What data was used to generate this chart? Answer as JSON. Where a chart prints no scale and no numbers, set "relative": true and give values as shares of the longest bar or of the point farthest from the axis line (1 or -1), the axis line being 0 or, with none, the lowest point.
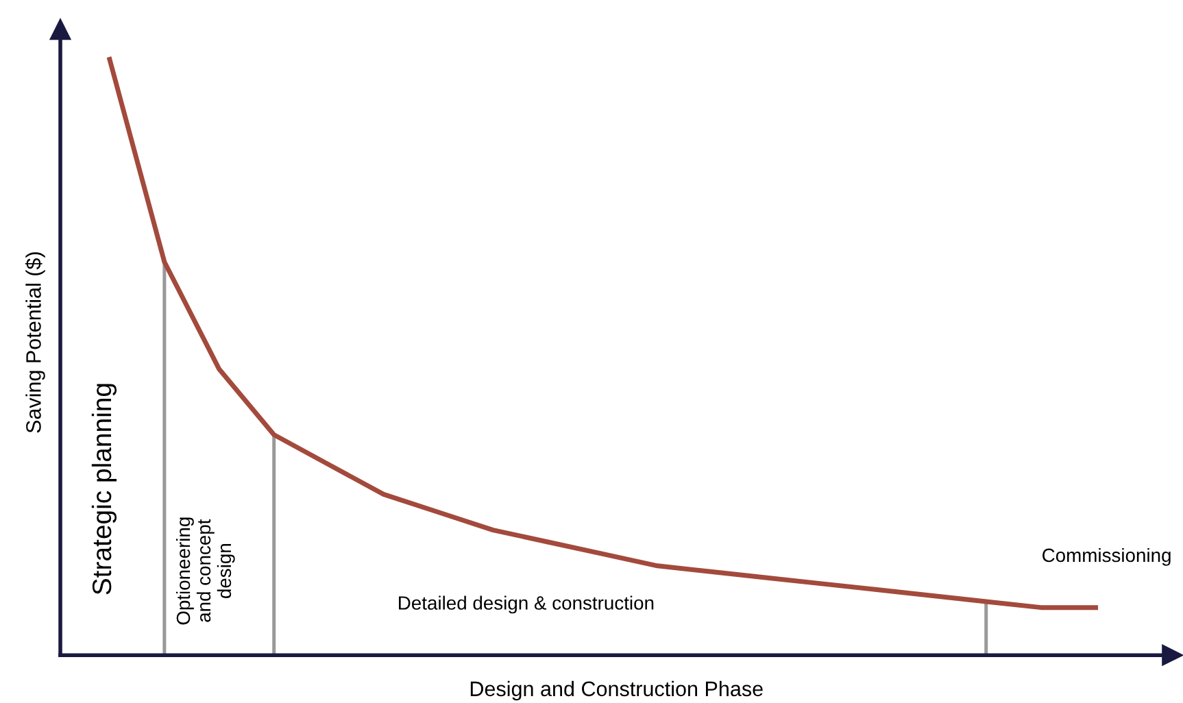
{
  "chart_data": {
    "type": "line",
    "relative": true,
    "xlabel": "Design and Construction Phase",
    "ylabel": "Saving Potential ($)",
    "categories": [
      null,
      null,
      null,
      null,
      null,
      null,
      null,
      null,
      null,
      null,
      null,
      null,
      null,
      null,
      null,
      null,
      null,
      null,
      null
    ],
    "series": [
      {
        "color": "#a34a3c",
        "values": [
          1.0,
          0.66,
          0.48,
          0.37,
          0.32,
          0.27,
          0.24,
          0.21,
          0.19,
          0.17,
          0.15,
          0.14,
          0.13,
          0.12,
          0.11,
          0.1,
          0.09,
          0.08,
          0.08
        ]
      }
    ],
    "annotations": [
      "Strategic planning",
      "Optioneering\nand concept\ndesign",
      "Detailed design & construction",
      "Commissioning"
    ],
    "grid": false,
    "legend": false,
    "marker": "none",
    "line_style": "solid"
  }
}
